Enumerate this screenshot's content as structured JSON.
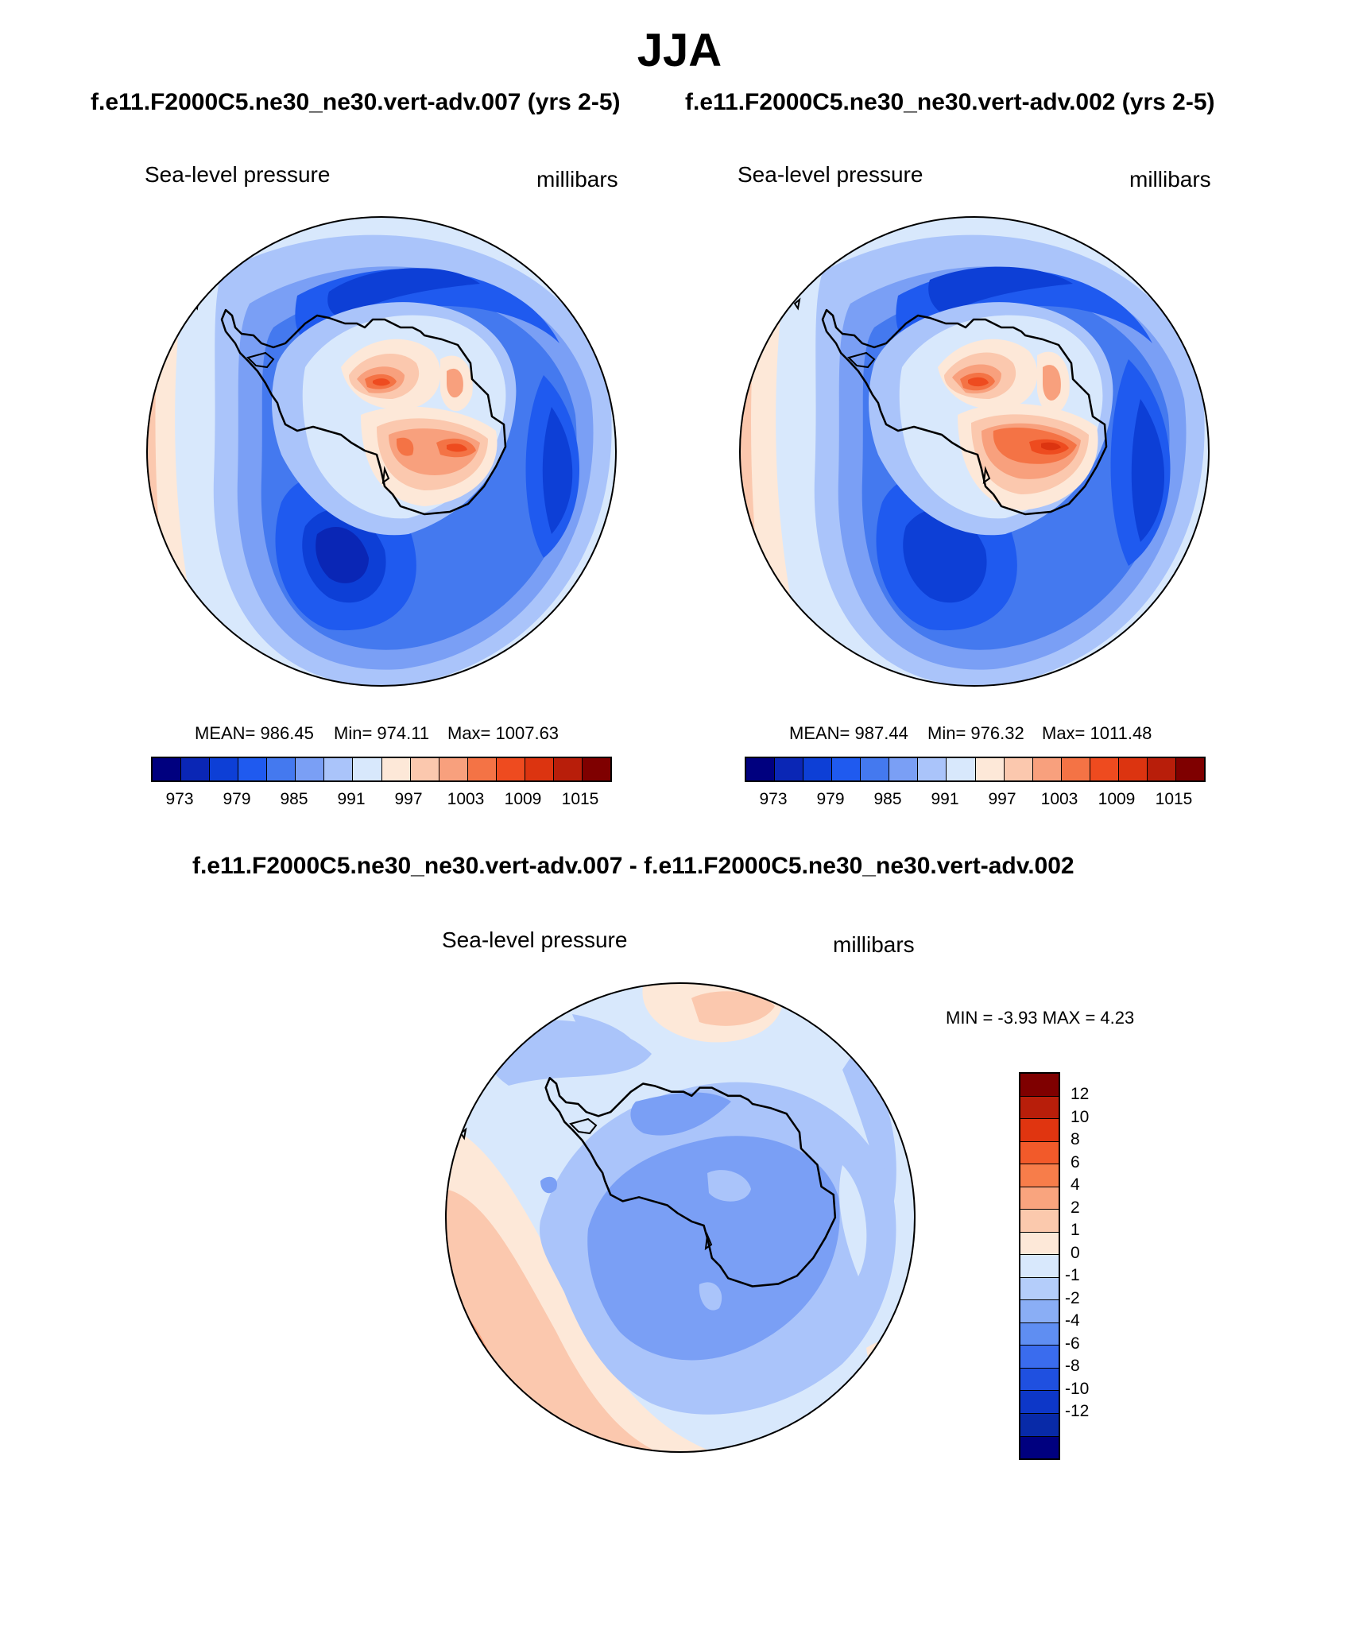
{
  "title": "JJA",
  "left_case": "f.e11.F2000C5.ne30_ne30.vert-adv.007 (yrs 2-5)",
  "right_case": "f.e11.F2000C5.ne30_ne30.vert-adv.002 (yrs 2-5)",
  "diff_title": "f.e11.F2000C5.ne30_ne30.vert-adv.007 - f.e11.F2000C5.ne30_ne30.vert-adv.002",
  "panels": [
    {
      "variable": "Sea-level pressure",
      "units": "millibars",
      "mean_label": "MEAN= 986.45",
      "min_label": "Min= 974.11",
      "max_label": "Max= 1007.63",
      "mean": 986.45,
      "min": 974.11,
      "max": 1007.63
    },
    {
      "variable": "Sea-level pressure",
      "units": "millibars",
      "mean_label": "MEAN= 987.44",
      "min_label": "Min= 976.32",
      "max_label": "Max= 1011.48",
      "mean": 987.44,
      "min": 976.32,
      "max": 1011.48
    },
    {
      "variable": "Sea-level pressure",
      "units": "millibars",
      "minmax_label": "MIN =  -3.93 MAX =   4.23",
      "min": -3.93,
      "max": 4.23
    }
  ],
  "colorbar_main": {
    "colors": [
      "#00007f",
      "#0a26b5",
      "#0d3fd6",
      "#1f5aef",
      "#4479ef",
      "#7a9ff5",
      "#aac4fa",
      "#d8e8fc",
      "#fde8d8",
      "#fbc8ae",
      "#f8a07d",
      "#f47345",
      "#ee4b1f",
      "#dc3410",
      "#b81e0a",
      "#7f0000"
    ],
    "tick_labels": [
      "973",
      "979",
      "985",
      "991",
      "997",
      "1003",
      "1009",
      "1015"
    ]
  },
  "colorbar_diff": {
    "colors": [
      "#7f0000",
      "#b81e0a",
      "#e03510",
      "#f25a2a",
      "#f77d4a",
      "#f9a47e",
      "#fbc9ad",
      "#fde8d8",
      "#d8e8fc",
      "#b4cdfa",
      "#8aaef5",
      "#5f8ef2",
      "#3a6cee",
      "#1f50e0",
      "#0d37c8",
      "#082aa8",
      "#00007f"
    ],
    "tick_labels": [
      "12",
      "10",
      "8",
      "6",
      "4",
      "2",
      "1",
      "0",
      "-1",
      "-2",
      "-4",
      "-6",
      "-8",
      "-10",
      "-12"
    ]
  }
}
